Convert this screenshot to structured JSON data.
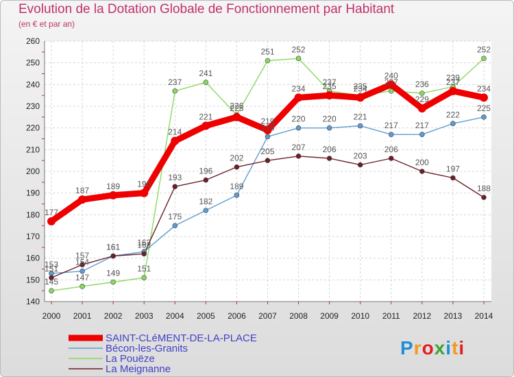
{
  "header": {
    "title": "Evolution de la Dotation Globale de Fonctionnement par Habitant",
    "subtitle": "(en € et par an)"
  },
  "logo": {
    "text": "Proxiti",
    "colors": [
      "#1e8fd6",
      "#f39a1c",
      "#e02020",
      "#3aa535",
      "#1e8fd6",
      "#f39a1c",
      "#e02020"
    ]
  },
  "chart_data": {
    "type": "line",
    "x": [
      2000,
      2001,
      2002,
      2003,
      2004,
      2005,
      2006,
      2007,
      2008,
      2009,
      2010,
      2011,
      2012,
      2013,
      2014
    ],
    "ylim": [
      140,
      260
    ],
    "yticks": [
      140,
      150,
      160,
      170,
      180,
      190,
      200,
      210,
      220,
      230,
      240,
      250,
      260
    ],
    "grid": true,
    "legend": "bottom-left",
    "series": [
      {
        "name": "SAINT-CLéMENT-DE-LA-PLACE",
        "color": "#ee0000",
        "values": [
          177,
          187,
          189,
          190,
          214,
          221,
          225,
          219,
          234,
          235,
          234,
          240,
          229,
          237,
          234
        ]
      },
      {
        "name": "Bécon-les-Granits",
        "color": "#5e9bd0",
        "values": [
          153,
          154,
          161,
          163,
          175,
          182,
          189,
          216,
          220,
          220,
          221,
          217,
          217,
          222,
          225
        ]
      },
      {
        "name": "La Pouëze",
        "color": "#88d860",
        "values": [
          145,
          147,
          149,
          151,
          237,
          241,
          226,
          251,
          252,
          237,
          235,
          237,
          236,
          239,
          252
        ]
      },
      {
        "name": "La Meignanne",
        "color": "#6b1f28",
        "values": [
          151,
          157,
          161,
          162,
          193,
          196,
          202,
          205,
          207,
          206,
          203,
          206,
          200,
          197,
          188
        ]
      }
    ]
  }
}
